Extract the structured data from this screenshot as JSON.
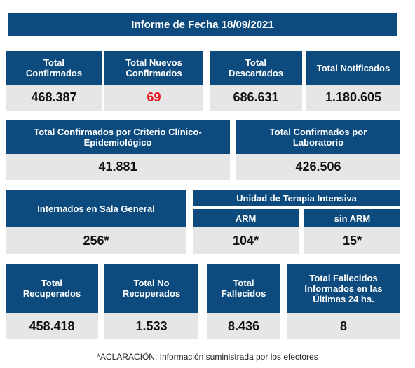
{
  "report": {
    "title": "Informe de Fecha 18/09/2021",
    "total_confirmados": {
      "label": "Total Confirmados",
      "value": "468.387"
    },
    "total_nuevos": {
      "label": "Total Nuevos Confirmados",
      "value": "69",
      "value_color": "#e8141c"
    },
    "total_descartados": {
      "label": "Total Descartados",
      "value": "686.631"
    },
    "total_notificados": {
      "label": "Total Notificados",
      "value": "1.180.605"
    },
    "criterio_clinico": {
      "label": "Total Confirmados por Criterio Clínico-Epidemiológico",
      "value": "41.881"
    },
    "laboratorio": {
      "label": "Total Confirmados por Laboratorio",
      "value": "426.506"
    },
    "sala_general": {
      "label": "Internados en Sala General",
      "value": "256*"
    },
    "uti": {
      "label": "Unidad de Terapia Intensiva",
      "arm": {
        "label": "ARM",
        "value": "104*"
      },
      "sin_arm": {
        "label": "sin ARM",
        "value": "15*"
      }
    },
    "recuperados": {
      "label": "Total Recuperados",
      "value": "458.418"
    },
    "no_recuperados": {
      "label": "Total No Recuperados",
      "value": "1.533"
    },
    "fallecidos": {
      "label": "Total Fallecidos",
      "value": "8.436"
    },
    "fallecidos_24h": {
      "label": "Total Fallecidos Informados en las Últimas 24 hs.",
      "value": "8"
    },
    "footnote": "*ACLARACIÓN: Información suministrada por los efectores"
  },
  "colors": {
    "header_blue": "#0d4b7e",
    "value_gray": "#e6e6e6",
    "highlight_red": "#e8141c"
  }
}
